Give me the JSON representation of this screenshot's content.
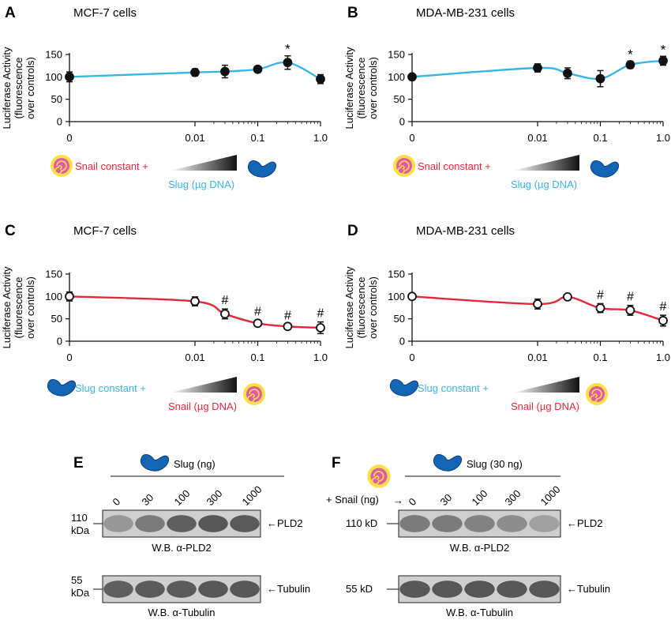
{
  "chart_data": [
    {
      "type": "line",
      "panel": "A",
      "title": "MCF-7 cells",
      "ylabel": [
        "Luciferase Activity",
        "(fluorescence",
        "over controls)"
      ],
      "x_tick_labels": [
        "0",
        "0.01",
        "0.1",
        "1.0"
      ],
      "y_tick_labels": [
        "0",
        "50",
        "100",
        "150"
      ],
      "ylim": [
        0,
        150
      ],
      "marker": "filled",
      "curve_color": "#38b5e6",
      "x": [
        "0",
        "0.01",
        "0.03",
        "0.1",
        "0.3",
        "1.0"
      ],
      "values": [
        100,
        110,
        112,
        117,
        132,
        95
      ],
      "errors": [
        11,
        8,
        14,
        7,
        15,
        10
      ],
      "significance": [
        "",
        "",
        "",
        "",
        "*",
        ""
      ],
      "legend": {
        "constant": "Snail constant +",
        "varied": "Slug (µg DNA)",
        "constant_color": "#e4283c",
        "varied_color": "#38b5e6",
        "constant_icon": "snail-icon",
        "varied_icon": "slug-icon"
      }
    },
    {
      "type": "line",
      "panel": "B",
      "title": "MDA-MB-231 cells",
      "ylabel": [
        "Luciferase Activity",
        "(fluorescence",
        "over controls)"
      ],
      "x_tick_labels": [
        "0",
        "0.01",
        "0.1",
        "1.0"
      ],
      "y_tick_labels": [
        "0",
        "50",
        "100",
        "150"
      ],
      "ylim": [
        0,
        150
      ],
      "marker": "filled",
      "curve_color": "#38b5e6",
      "x": [
        "0",
        "0.01",
        "0.03",
        "0.1",
        "0.3",
        "1.0"
      ],
      "values": [
        100,
        120,
        108,
        96,
        127,
        136
      ],
      "errors": [
        5,
        9,
        12,
        18,
        8,
        10
      ],
      "significance": [
        "",
        "",
        "",
        "",
        "*",
        "*"
      ],
      "legend": {
        "constant": "Snail constant +",
        "varied": "Slug (µg DNA)",
        "constant_color": "#e4283c",
        "varied_color": "#38b5e6",
        "constant_icon": "snail-icon",
        "varied_icon": "slug-icon"
      }
    },
    {
      "type": "line",
      "panel": "C",
      "title": "MCF-7 cells",
      "ylabel": [
        "Luciferase Activity",
        "(fluorescence",
        "over controls)"
      ],
      "x_tick_labels": [
        "0",
        "0.01",
        "0.1",
        "1.0"
      ],
      "y_tick_labels": [
        "0",
        "50",
        "100",
        "150"
      ],
      "ylim": [
        0,
        150
      ],
      "marker": "open",
      "curve_color": "#e4283c",
      "x": [
        "0",
        "0.01",
        "0.03",
        "0.1",
        "0.3",
        "1.0"
      ],
      "values": [
        100,
        89,
        61,
        40,
        33,
        30
      ],
      "errors": [
        10,
        10,
        11,
        7,
        5,
        13
      ],
      "significance": [
        "",
        "",
        "#",
        "#",
        "#",
        "#"
      ],
      "legend": {
        "constant": "Slug constant +",
        "varied": "Snail (µg DNA)",
        "constant_color": "#38b5e6",
        "varied_color": "#e4283c",
        "constant_icon": "slug-icon",
        "varied_icon": "snail-icon"
      }
    },
    {
      "type": "line",
      "panel": "D",
      "title": "MDA-MB-231 cells",
      "ylabel": [
        "Luciferase Activity",
        "(fluorescence",
        "over controls)"
      ],
      "x_tick_labels": [
        "0",
        "0.01",
        "0.1",
        "1.0"
      ],
      "y_tick_labels": [
        "0",
        "50",
        "100",
        "150"
      ],
      "ylim": [
        0,
        150
      ],
      "marker": "open",
      "curve_color": "#e4283c",
      "x": [
        "0",
        "0.01",
        "0.03",
        "0.1",
        "0.3",
        "1.0"
      ],
      "values": [
        100,
        83,
        99,
        74,
        69,
        46
      ],
      "errors": [
        6,
        11,
        6,
        10,
        11,
        12
      ],
      "significance": [
        "",
        "",
        "",
        "#",
        "#",
        "#"
      ],
      "legend": {
        "constant": "Slug constant +",
        "varied": "Snail (µg DNA)",
        "constant_color": "#38b5e6",
        "varied_color": "#e4283c",
        "constant_icon": "slug-icon",
        "varied_icon": "snail-icon"
      }
    }
  ],
  "blots": [
    {
      "panel": "E",
      "header": "Slug (ng)",
      "header_icon": "slug-icon",
      "lane_labels": [
        "0",
        "30",
        "100",
        "300",
        "1000"
      ],
      "top_blot": {
        "marker_label": [
          "110",
          "kDa"
        ],
        "protein": "PLD2",
        "caption": "W.B. α-PLD2",
        "band_intensity": [
          0.35,
          0.55,
          0.75,
          0.8,
          0.78
        ]
      },
      "bottom_blot": {
        "marker_label": [
          "55",
          "kDa"
        ],
        "protein": "Tubulin",
        "caption": "W.B. α-Tubulin",
        "band_intensity": [
          0.75,
          0.78,
          0.78,
          0.8,
          0.8
        ]
      }
    },
    {
      "panel": "F",
      "header": "Slug (30 ng)",
      "header_icon": "slug-icon",
      "snail_label": "+ Snail (ng)",
      "snail_icon": "snail-icon",
      "lane_labels": [
        "0",
        "30",
        "100",
        "300",
        "1000"
      ],
      "top_blot": {
        "marker_label": [
          "110 kD"
        ],
        "protein": "PLD2",
        "caption": "W.B. α-PLD2",
        "band_intensity": [
          0.55,
          0.55,
          0.5,
          0.42,
          0.28
        ]
      },
      "bottom_blot": {
        "marker_label": [
          "55 kD"
        ],
        "protein": "Tubulin",
        "caption": "W.B. α-Tubulin",
        "band_intensity": [
          0.8,
          0.8,
          0.82,
          0.8,
          0.8
        ]
      }
    }
  ]
}
